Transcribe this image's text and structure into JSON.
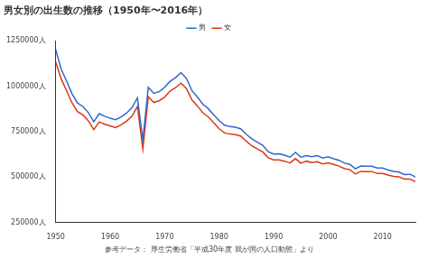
{
  "chart_data": {
    "type": "line",
    "title": "男女別の出生数の推移（1950年〜2016年）",
    "annotation": "参考データ： 厚生労働省「平成30年度 我が国の人口動態」より",
    "x": [
      1950,
      1951,
      1952,
      1953,
      1954,
      1955,
      1956,
      1957,
      1958,
      1959,
      1960,
      1961,
      1962,
      1963,
      1964,
      1965,
      1966,
      1967,
      1968,
      1969,
      1970,
      1971,
      1972,
      1973,
      1974,
      1975,
      1976,
      1977,
      1978,
      1979,
      1980,
      1981,
      1982,
      1983,
      1984,
      1985,
      1986,
      1987,
      1988,
      1989,
      1990,
      1991,
      1992,
      1993,
      1994,
      1995,
      1996,
      1997,
      1998,
      1999,
      2000,
      2001,
      2002,
      2003,
      2004,
      2005,
      2006,
      2007,
      2008,
      2009,
      2010,
      2011,
      2012,
      2013,
      2014,
      2015,
      2016
    ],
    "series": [
      {
        "name": "男",
        "color": "#3366cc",
        "marker": "none",
        "line_style": "solid",
        "values": [
          1203000,
          1095000,
          1029000,
          959000,
          908000,
          889000,
          855000,
          805000,
          849000,
          835000,
          824000,
          816000,
          831000,
          852000,
          882000,
          936000,
          705000,
          994000,
          961000,
          970000,
          994000,
          1027000,
          1047000,
          1075000,
          1043000,
          976000,
          941000,
          901000,
          877000,
          843000,
          811000,
          786000,
          778000,
          775000,
          765000,
          735000,
          711000,
          692000,
          675000,
          640000,
          627000,
          628000,
          621000,
          610000,
          636000,
          610000,
          619000,
          612000,
          618000,
          605000,
          612000,
          601000,
          593000,
          577000,
          570000,
          546000,
          561000,
          560000,
          560000,
          550000,
          550000,
          539000,
          532000,
          528000,
          515000,
          516000,
          501000
        ]
      },
      {
        "name": "女",
        "color": "#dc3912",
        "marker": "none",
        "line_style": "solid",
        "values": [
          1134000,
          1042000,
          976000,
          909000,
          861000,
          842000,
          810000,
          762000,
          804000,
          791000,
          782000,
          773000,
          788000,
          808000,
          835000,
          888000,
          656000,
          942000,
          911000,
          920000,
          940000,
          974000,
          992000,
          1017000,
          987000,
          925000,
          892000,
          854000,
          832000,
          800000,
          766000,
          743000,
          737000,
          734000,
          725000,
          697000,
          672000,
          655000,
          639000,
          607000,
          595000,
          595000,
          588000,
          578000,
          602000,
          577000,
          588000,
          580000,
          585000,
          573000,
          579000,
          570000,
          561000,
          547000,
          541000,
          517000,
          532000,
          530000,
          531000,
          520000,
          521000,
          512000,
          505000,
          502000,
          489000,
          490000,
          476000
        ]
      }
    ],
    "xlim": [
      1950,
      2016
    ],
    "xticks": [
      1950,
      1960,
      1970,
      1980,
      1990,
      2000,
      2010
    ],
    "ylim": [
      250000,
      1250000
    ],
    "yticks": [
      {
        "value": 250000,
        "label": "250000人"
      },
      {
        "value": 500000,
        "label": "500000人"
      },
      {
        "value": 750000,
        "label": "750000人"
      },
      {
        "value": 1000000,
        "label": "1000000人"
      },
      {
        "value": 1250000,
        "label": "1250000人"
      }
    ],
    "grid": false,
    "legend": "top"
  }
}
